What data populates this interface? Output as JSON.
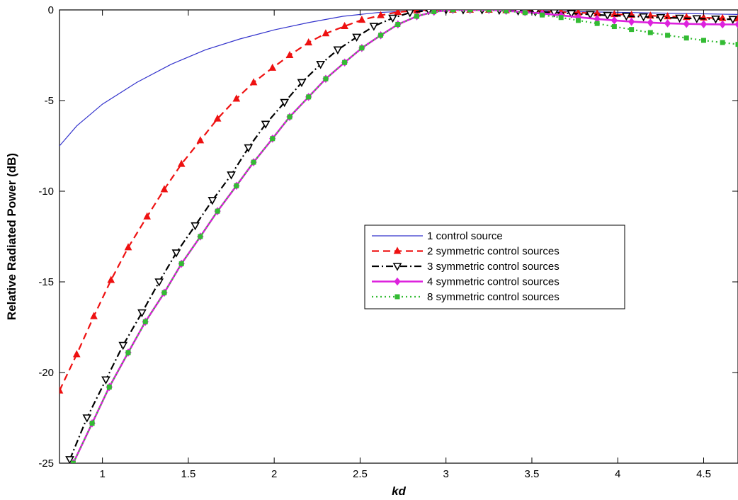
{
  "chart_data": {
    "type": "line",
    "title": "",
    "xlabel": "kd",
    "ylabel": "Relative Radiated Power (dB)",
    "xlim": [
      0.75,
      4.7
    ],
    "ylim": [
      -25,
      0
    ],
    "x_ticks": [
      1,
      1.5,
      2,
      2.5,
      3,
      3.5,
      4,
      4.5
    ],
    "x_tick_labels": [
      "1",
      "1.5",
      "2",
      "2.5",
      "3",
      "3.5",
      "4",
      "4.5"
    ],
    "y_ticks": [
      0,
      -5,
      -10,
      -15,
      -20,
      -25
    ],
    "y_tick_labels": [
      "0",
      "-5",
      "-10",
      "-15",
      "-20",
      "-25"
    ],
    "grid": false,
    "legend_position": "center-right",
    "series": [
      {
        "name": "1 control source",
        "color": "#3333cc",
        "line_style": "solid",
        "marker": "none",
        "x": [
          0.75,
          0.85,
          1.0,
          1.2,
          1.4,
          1.6,
          1.8,
          2.0,
          2.2,
          2.4,
          2.6,
          2.8,
          3.0,
          3.14,
          3.3,
          3.5,
          3.8,
          4.1,
          4.4,
          4.7
        ],
        "y": [
          -7.5,
          -6.4,
          -5.2,
          -4.0,
          -3.0,
          -2.2,
          -1.6,
          -1.1,
          -0.7,
          -0.35,
          -0.15,
          -0.05,
          0,
          0,
          -0.02,
          -0.06,
          -0.1,
          -0.15,
          -0.2,
          -0.25
        ]
      },
      {
        "name": "2 symmetric control sources",
        "color": "#ee1111",
        "line_style": "dashed",
        "marker": "triangle-up",
        "x": [
          0.75,
          0.85,
          0.95,
          1.05,
          1.15,
          1.26,
          1.36,
          1.46,
          1.57,
          1.67,
          1.78,
          1.88,
          1.99,
          2.09,
          2.2,
          2.3,
          2.41,
          2.51,
          2.62,
          2.72,
          2.83,
          2.93,
          3.04,
          3.14,
          3.25,
          3.35,
          3.46,
          3.56,
          3.67,
          3.77,
          3.88,
          3.98,
          4.08,
          4.19,
          4.29,
          4.4,
          4.5,
          4.61,
          4.7
        ],
        "y": [
          -21.0,
          -19.0,
          -16.9,
          -14.9,
          -13.1,
          -11.4,
          -9.9,
          -8.5,
          -7.2,
          -6.0,
          -4.9,
          -4.0,
          -3.2,
          -2.5,
          -1.8,
          -1.3,
          -0.9,
          -0.55,
          -0.3,
          -0.12,
          -0.03,
          0,
          0,
          0,
          0,
          -0.02,
          -0.05,
          -0.08,
          -0.12,
          -0.15,
          -0.2,
          -0.24,
          -0.28,
          -0.32,
          -0.36,
          -0.4,
          -0.43,
          -0.46,
          -0.48
        ]
      },
      {
        "name": "3 symmetric control sources",
        "color": "#000000",
        "line_style": "dash-dot",
        "marker": "triangle-down",
        "x": [
          0.81,
          0.91,
          1.02,
          1.12,
          1.23,
          1.33,
          1.43,
          1.54,
          1.64,
          1.75,
          1.85,
          1.95,
          2.06,
          2.16,
          2.27,
          2.37,
          2.48,
          2.58,
          2.69,
          2.79,
          2.9,
          3.0,
          3.1,
          3.21,
          3.31,
          3.42,
          3.52,
          3.63,
          3.73,
          3.84,
          3.94,
          4.05,
          4.15,
          4.25,
          4.36,
          4.46,
          4.57,
          4.67
        ],
        "y": [
          -24.8,
          -22.5,
          -20.4,
          -18.5,
          -16.7,
          -15.0,
          -13.4,
          -11.9,
          -10.5,
          -9.1,
          -7.6,
          -6.3,
          -5.1,
          -4.0,
          -3.0,
          -2.2,
          -1.5,
          -0.9,
          -0.45,
          -0.15,
          -0.03,
          0,
          0,
          0,
          -0.02,
          -0.06,
          -0.1,
          -0.15,
          -0.2,
          -0.25,
          -0.3,
          -0.34,
          -0.38,
          -0.42,
          -0.45,
          -0.48,
          -0.5,
          -0.52
        ]
      },
      {
        "name": "4 symmetric control sources",
        "color": "#dd22dd",
        "line_style": "solid",
        "marker": "diamond",
        "x": [
          0.83,
          0.94,
          1.04,
          1.15,
          1.25,
          1.36,
          1.46,
          1.57,
          1.67,
          1.78,
          1.88,
          1.99,
          2.09,
          2.2,
          2.3,
          2.41,
          2.51,
          2.62,
          2.72,
          2.83,
          2.93,
          3.04,
          3.14,
          3.25,
          3.35,
          3.46,
          3.56,
          3.67,
          3.77,
          3.88,
          3.98,
          4.08,
          4.19,
          4.29,
          4.4,
          4.5,
          4.61,
          4.7
        ],
        "y": [
          -25.0,
          -22.8,
          -20.8,
          -18.9,
          -17.2,
          -15.6,
          -14.0,
          -12.5,
          -11.1,
          -9.7,
          -8.4,
          -7.1,
          -5.9,
          -4.8,
          -3.8,
          -2.9,
          -2.1,
          -1.4,
          -0.8,
          -0.35,
          -0.1,
          0,
          0,
          0,
          -0.05,
          -0.12,
          -0.2,
          -0.3,
          -0.4,
          -0.5,
          -0.58,
          -0.65,
          -0.7,
          -0.74,
          -0.77,
          -0.79,
          -0.8,
          -0.8
        ]
      },
      {
        "name": "8 symmetric control sources",
        "color": "#33bb33",
        "line_style": "dotted",
        "marker": "square",
        "x": [
          0.83,
          0.94,
          1.04,
          1.15,
          1.25,
          1.36,
          1.46,
          1.57,
          1.67,
          1.78,
          1.88,
          1.99,
          2.09,
          2.2,
          2.3,
          2.41,
          2.51,
          2.62,
          2.72,
          2.83,
          2.93,
          3.04,
          3.14,
          3.25,
          3.35,
          3.46,
          3.56,
          3.67,
          3.77,
          3.88,
          3.98,
          4.08,
          4.19,
          4.29,
          4.4,
          4.5,
          4.61,
          4.7
        ],
        "y": [
          -25.0,
          -22.8,
          -20.8,
          -18.9,
          -17.2,
          -15.6,
          -14.0,
          -12.5,
          -11.1,
          -9.7,
          -8.4,
          -7.1,
          -5.9,
          -4.8,
          -3.8,
          -2.9,
          -2.1,
          -1.4,
          -0.8,
          -0.35,
          -0.1,
          0,
          0,
          0,
          -0.06,
          -0.15,
          -0.28,
          -0.42,
          -0.58,
          -0.75,
          -0.92,
          -1.08,
          -1.25,
          -1.4,
          -1.55,
          -1.68,
          -1.8,
          -1.9
        ]
      }
    ]
  }
}
